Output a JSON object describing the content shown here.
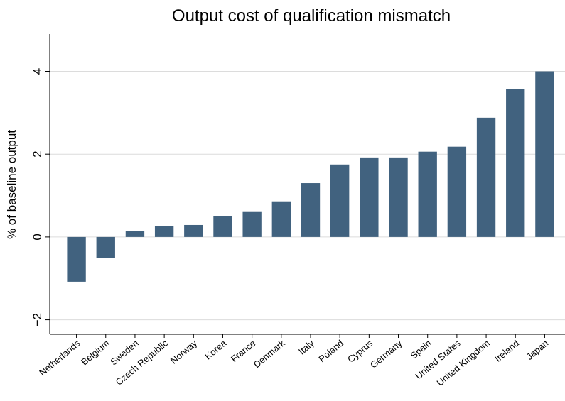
{
  "chart_data": {
    "type": "bar",
    "title": "Output cost of qualification mismatch",
    "y_label": "% of baseline output",
    "categories": [
      "Netherlands",
      "Belgium",
      "Sweden",
      "Czech Republic",
      "Norway",
      "Korea",
      "France",
      "Denmark",
      "Italy",
      "Poland",
      "Cyprus",
      "Germany",
      "Spain",
      "United States",
      "United Kingdom",
      "Ireland",
      "Japan"
    ],
    "values": [
      -1.08,
      -0.5,
      0.15,
      0.26,
      0.29,
      0.51,
      0.62,
      0.86,
      1.3,
      1.75,
      1.92,
      1.92,
      2.06,
      2.18,
      2.88,
      3.57,
      4.0
    ],
    "color": "#41627f",
    "ylim": [
      -2.35,
      4.9
    ],
    "yticks": [
      {
        "value": -2,
        "label": "−2"
      },
      0,
      2,
      4
    ],
    "grid": true
  }
}
